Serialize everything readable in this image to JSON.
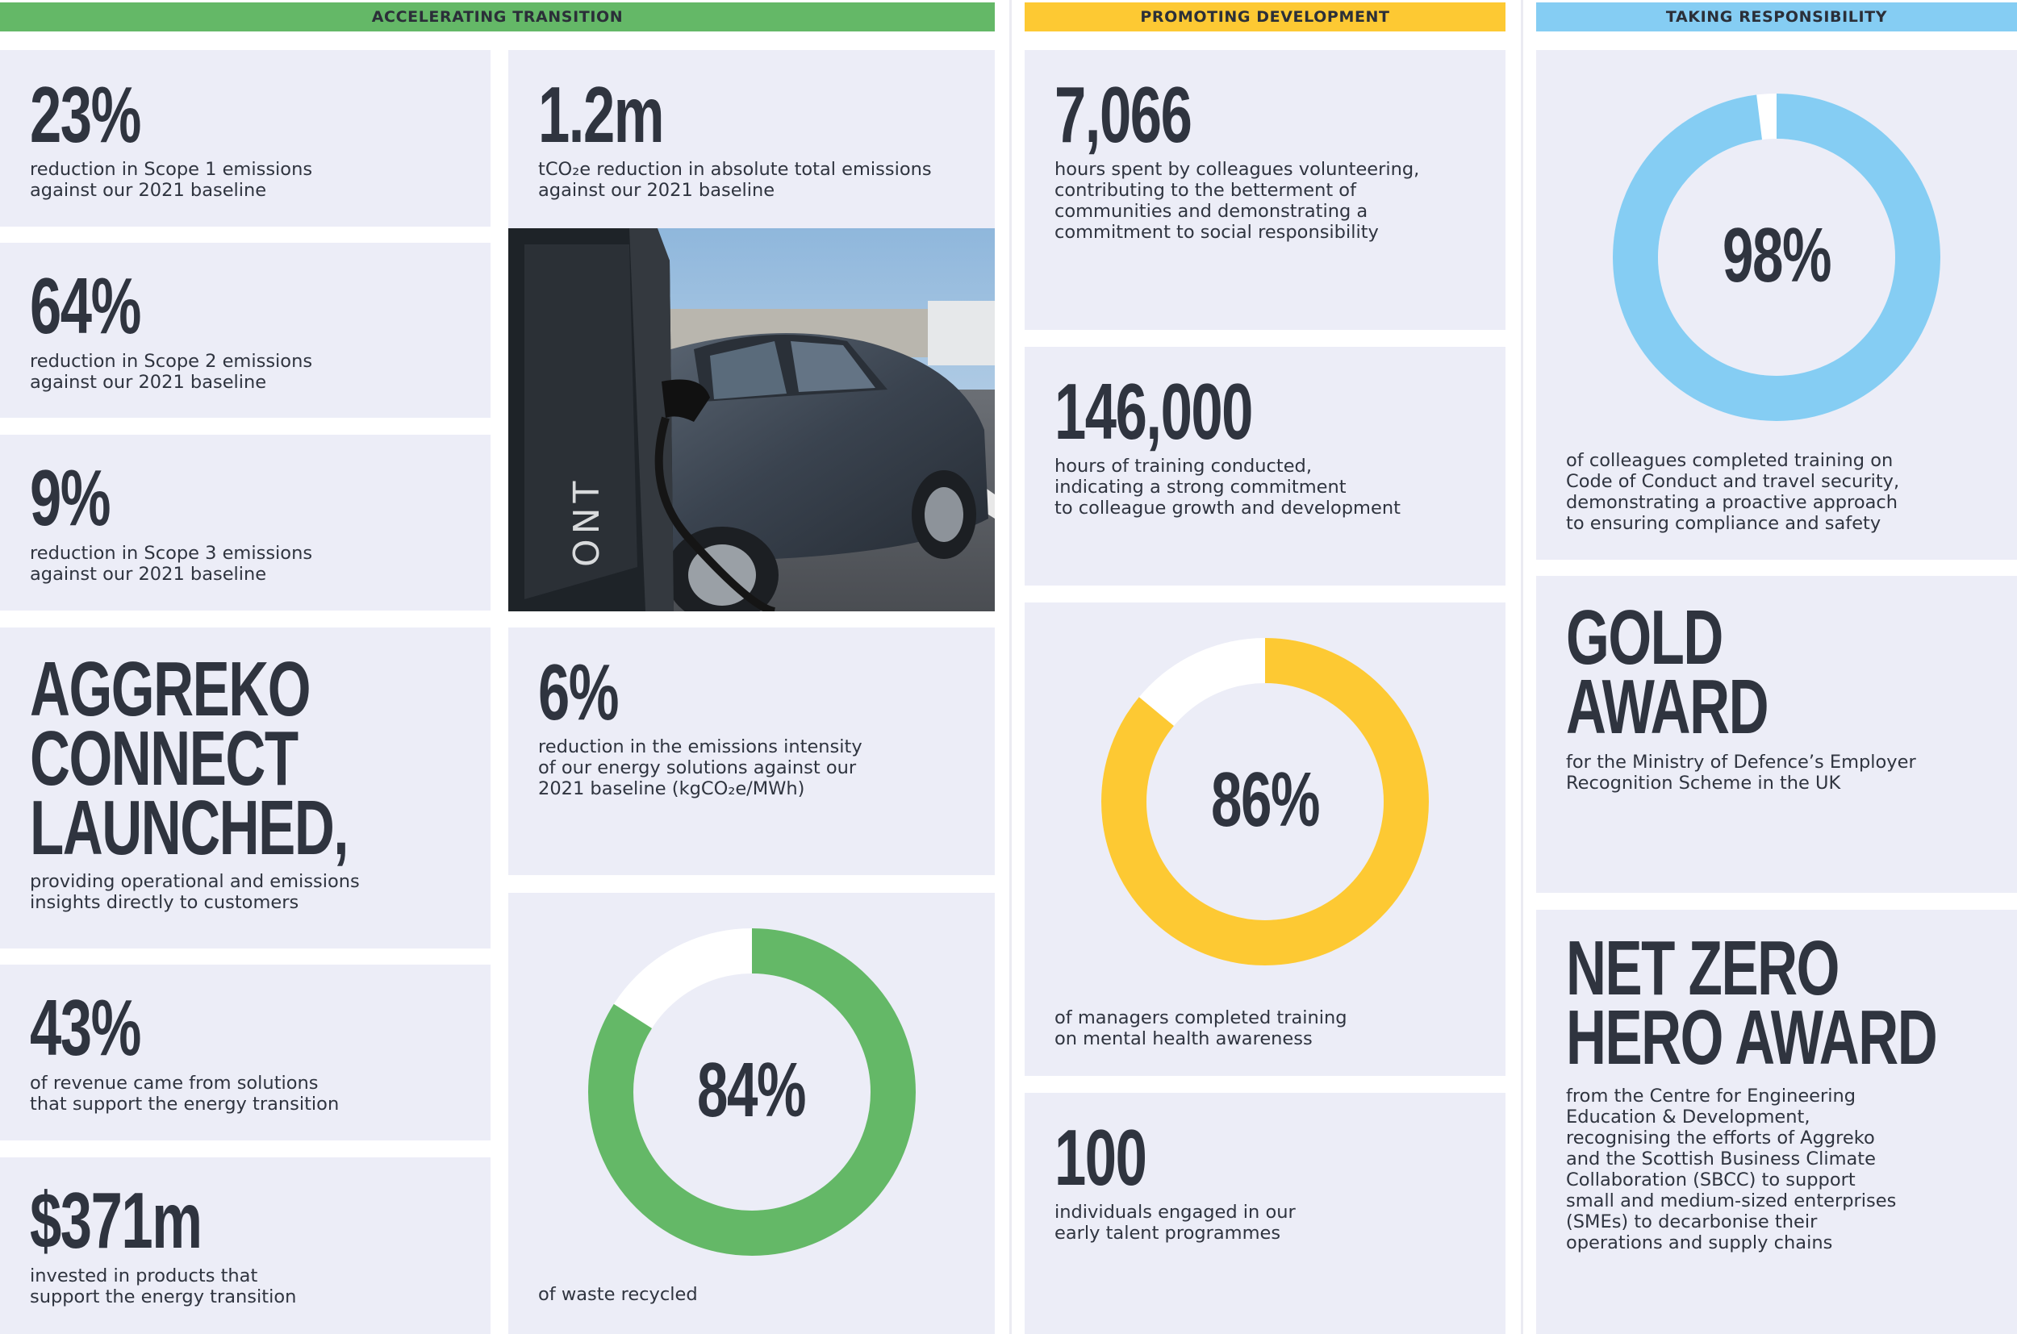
{
  "headers": {
    "accelerating": "ACCELERATING TRANSITION",
    "promoting": "PROMOTING DEVELOPMENT",
    "responsibility": "TAKING RESPONSIBILITY"
  },
  "colors": {
    "green": "#64b867",
    "yellow": "#fdc933",
    "blue": "#85cdf3",
    "card": "#ecedf7",
    "text": "#2f343f"
  },
  "accelerating": {
    "scope1": {
      "value": "23%",
      "desc": "reduction in Scope 1 emissions\nagainst our 2021 baseline"
    },
    "scope2": {
      "value": "64%",
      "desc": "reduction in Scope 2 emissions\nagainst our 2021 baseline"
    },
    "scope3": {
      "value": "9%",
      "desc": "reduction in Scope 3 emissions\nagainst our 2021 baseline"
    },
    "connect": {
      "value": "AGGREKO\nCONNECT\nLAUNCHED,",
      "desc": "providing operational and emissions\ninsights directly to customers"
    },
    "revenue": {
      "value": "43%",
      "desc": "of revenue came from solutions\nthat support the energy transition"
    },
    "invested": {
      "value": "$371m",
      "desc": "invested in products that\nsupport the energy transition"
    },
    "tco2e": {
      "value": "1.2m",
      "desc": "tCO₂e reduction in absolute total emissions\nagainst our 2021 baseline"
    },
    "photo_alt": "Electric car charging at a charger",
    "intensity": {
      "value": "6%",
      "desc": "reduction in the emissions intensity\nof our energy solutions against our\n2021 baseline (kgCO₂e/MWh)"
    },
    "waste": {
      "value": "84%",
      "percent": 84,
      "desc": "of waste recycled"
    }
  },
  "promoting": {
    "volunteering": {
      "value": "7,066",
      "desc": "hours spent by colleagues volunteering,\ncontributing to the betterment of\ncommunities and demonstrating a\ncommitment to social responsibility"
    },
    "training": {
      "value": "146,000",
      "desc": "hours of training conducted,\nindicating a strong commitment\nto colleague growth and development"
    },
    "mental_health": {
      "value": "86%",
      "percent": 86,
      "desc": "of managers completed training\non mental health awareness"
    },
    "early_talent": {
      "value": "100",
      "desc": "individuals engaged in our\nearly talent programmes"
    }
  },
  "responsibility": {
    "code_conduct": {
      "value": "98%",
      "percent": 98,
      "desc": "of colleagues completed training on\nCode of Conduct and travel security,\ndemonstrating a proactive approach\nto ensuring compliance and safety"
    },
    "gold_award": {
      "value": "GOLD\nAWARD",
      "desc": "for the Ministry of Defence’s Employer\nRecognition Scheme in the UK"
    },
    "net_zero": {
      "value": "NET ZERO\nHERO AWARD",
      "desc": "from the Centre for Engineering\nEducation & Development,\nrecognising the efforts of Aggreko\nand the Scottish Business Climate\nCollaboration (SBCC) to support\nsmall and medium-sized enterprises\n(SMEs) to decarbonise their\noperations and supply chains"
    }
  }
}
